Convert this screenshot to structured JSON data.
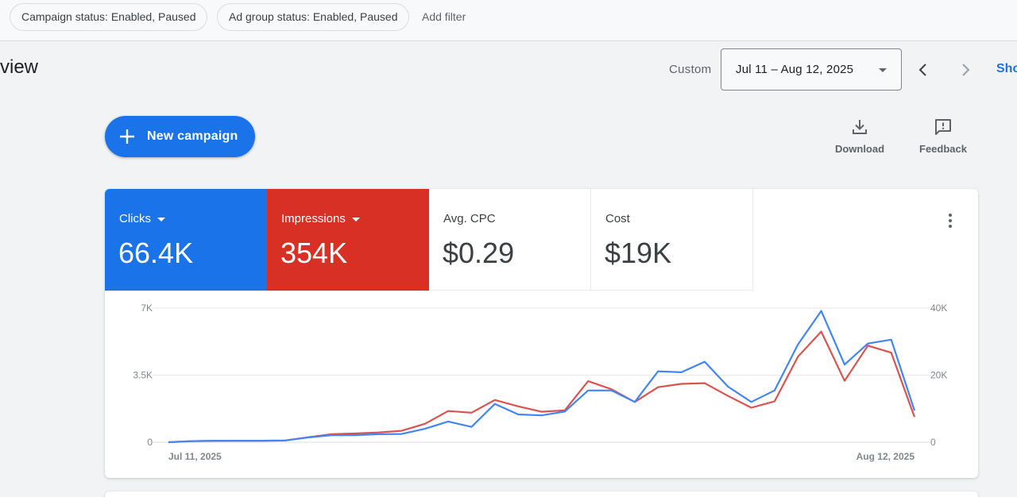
{
  "filters": {
    "chips": [
      "Campaign status: Enabled, Paused",
      "Ad group status: Enabled, Paused"
    ],
    "add_filter": "Add filter"
  },
  "header": {
    "title": "view",
    "date_range_label": "Custom",
    "date_range_value": "Jul 11 – Aug 12, 2025",
    "show_link": "Sho"
  },
  "toolbar": {
    "new_campaign": "New campaign",
    "download": "Download",
    "feedback": "Feedback"
  },
  "metrics": [
    {
      "name": "Clicks",
      "value": "66.4K",
      "color": "#1a73e8",
      "selected": true
    },
    {
      "name": "Impressions",
      "value": "354K",
      "color": "#d93025",
      "selected": true
    },
    {
      "name": "Avg. CPC",
      "value": "$0.29",
      "selected": false
    },
    {
      "name": "Cost",
      "value": "$19K",
      "selected": false
    }
  ],
  "chart_data": {
    "type": "line",
    "x_start_label": "Jul 11, 2025",
    "x_end_label": "Aug 12, 2025",
    "left_axis": {
      "ticks": [
        "0",
        "3.5K",
        "7K"
      ],
      "ylim": [
        0,
        7000
      ]
    },
    "right_axis": {
      "ticks": [
        "0",
        "20K",
        "40K"
      ],
      "ylim": [
        0,
        40000
      ]
    },
    "grid": true,
    "series": [
      {
        "name": "Clicks",
        "axis": "left",
        "color": "#4285f4",
        "values": [
          0,
          60,
          80,
          80,
          80,
          90,
          250,
          370,
          370,
          420,
          430,
          700,
          1080,
          800,
          2000,
          1450,
          1400,
          1600,
          2700,
          2700,
          2100,
          3700,
          3650,
          4200,
          2900,
          2100,
          2700,
          5100,
          6850,
          4050,
          5150,
          5350,
          1650
        ]
      },
      {
        "name": "Impressions",
        "axis": "right",
        "color": "#d9534f",
        "values": [
          0,
          300,
          400,
          450,
          450,
          500,
          1500,
          2400,
          2600,
          2900,
          3400,
          5500,
          9300,
          8800,
          12600,
          10700,
          9100,
          9500,
          18200,
          15800,
          12000,
          16400,
          17400,
          17600,
          13800,
          10300,
          12200,
          25500,
          33000,
          18300,
          28800,
          26700,
          7500
        ]
      }
    ]
  }
}
